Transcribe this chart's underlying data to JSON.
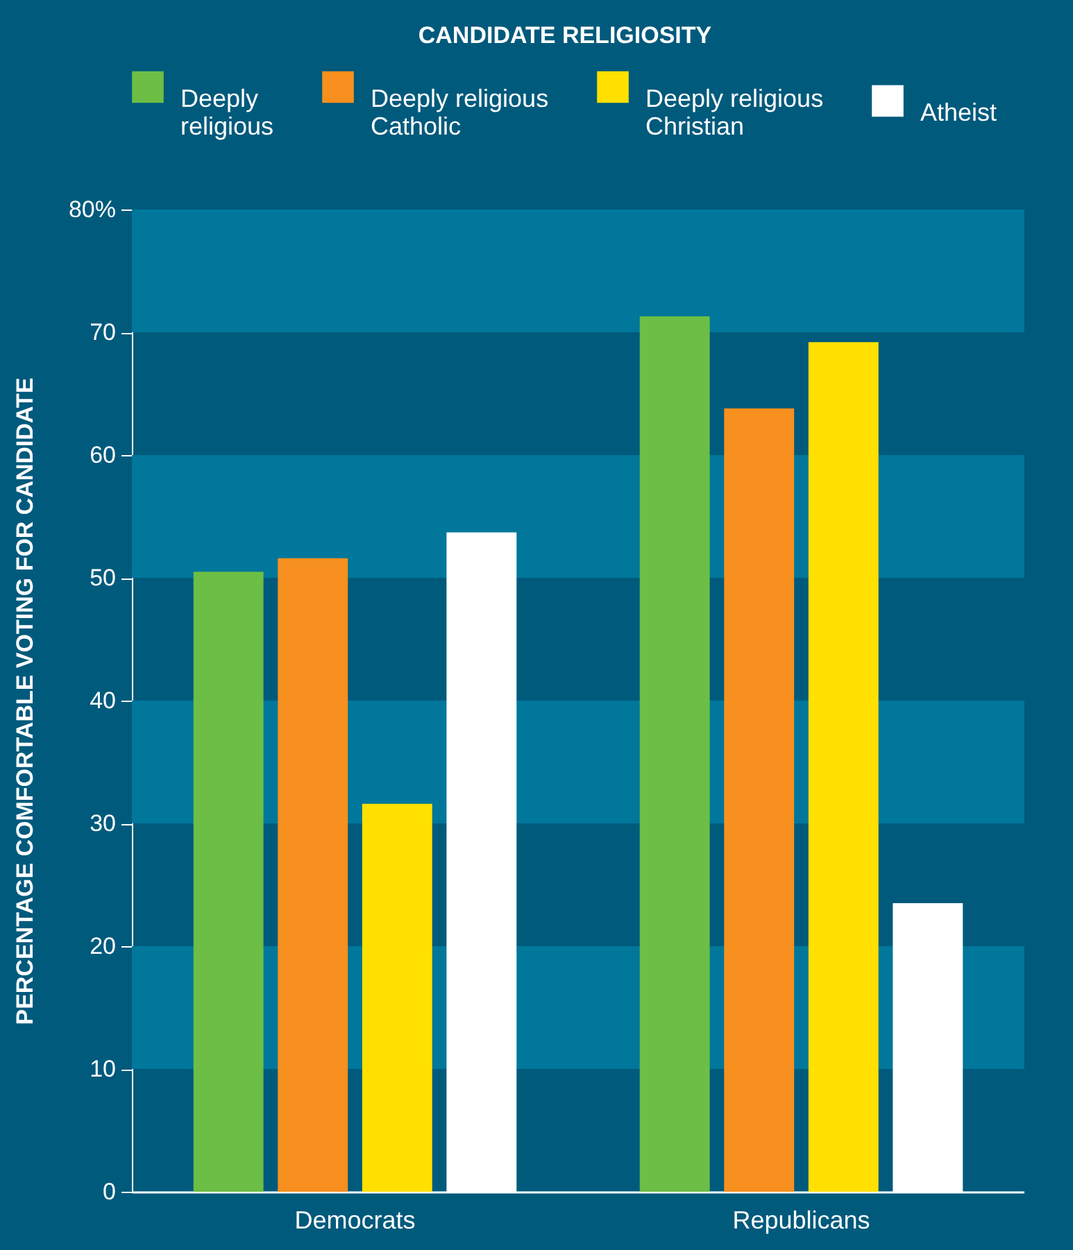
{
  "chart_data": {
    "type": "bar",
    "legend_title": "CANDIDATE RELIGIOSITY",
    "ylabel": "PERCENTAGE COMFORTABLE VOTING FOR CANDIDATE",
    "categories": [
      "Democrats",
      "Republicans"
    ],
    "series": [
      {
        "name": "Deeply religious",
        "color": "#6cbe45",
        "values": [
          50.5,
          71.3
        ]
      },
      {
        "name": "Deeply religious Catholic",
        "color": "#f7901e",
        "values": [
          51.6,
          63.8
        ]
      },
      {
        "name": "Deeply religious Christian",
        "color": "#ffe000",
        "values": [
          31.6,
          69.2
        ]
      },
      {
        "name": "Atheist",
        "color": "#ffffff",
        "values": [
          53.7,
          23.5
        ]
      }
    ],
    "ylim": [
      0,
      80
    ],
    "yticks": [
      0,
      10,
      20,
      30,
      40,
      50,
      60,
      {
        "value": 80,
        "label": "80%"
      },
      70
    ],
    "bands": [
      {
        "axis": "y",
        "from": 70,
        "to": 80,
        "color": "#00779b"
      },
      {
        "axis": "y",
        "from": 50,
        "to": 60,
        "color": "#00779b"
      },
      {
        "axis": "y",
        "from": 30,
        "to": 40,
        "color": "#00779b"
      },
      {
        "axis": "y",
        "from": 10,
        "to": 20,
        "color": "#00779b"
      }
    ],
    "grid": false,
    "legend": "top"
  }
}
